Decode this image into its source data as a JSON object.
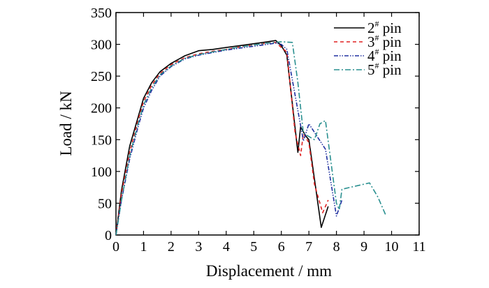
{
  "chart_data": {
    "type": "line",
    "xlabel": "Displacement / mm",
    "ylabel": "Load / kN",
    "xlim": [
      0,
      11
    ],
    "ylim": [
      0,
      350
    ],
    "xticks": [
      0,
      1,
      2,
      3,
      4,
      5,
      6,
      7,
      8,
      9,
      10,
      11
    ],
    "yticks": [
      0,
      50,
      100,
      150,
      200,
      250,
      300,
      350
    ],
    "grid": false,
    "legend_position": "top-right",
    "series": [
      {
        "name": "2# pin",
        "name_base": "2",
        "name_sup": "#",
        "name_rest": " pin",
        "color": "#000000",
        "dash": "solid",
        "x": [
          0,
          0.2,
          0.5,
          0.8,
          1.0,
          1.3,
          1.6,
          2.0,
          2.5,
          3.0,
          3.5,
          4.0,
          4.5,
          5.0,
          5.5,
          5.8,
          6.0,
          6.2,
          6.6,
          6.7,
          6.9,
          7.0,
          7.45,
          7.7
        ],
        "y": [
          0,
          70,
          140,
          185,
          215,
          240,
          257,
          270,
          282,
          290,
          292,
          295,
          298,
          301,
          304,
          306,
          298,
          283,
          130,
          170,
          155,
          150,
          12,
          45
        ]
      },
      {
        "name": "3# pin",
        "name_base": "3",
        "name_sup": "#",
        "name_rest": " pin",
        "color": "#e02020",
        "dash": "5,4",
        "x": [
          0,
          0.2,
          0.5,
          0.8,
          1.0,
          1.3,
          1.6,
          2.0,
          2.5,
          3.0,
          3.5,
          4.0,
          4.5,
          5.0,
          5.5,
          5.8,
          6.0,
          6.2,
          6.5,
          6.7,
          6.8,
          7.0,
          7.2,
          7.5,
          7.7
        ],
        "y": [
          0,
          65,
          130,
          180,
          210,
          236,
          254,
          268,
          279,
          285,
          289,
          292,
          296,
          299,
          302,
          303,
          295,
          288,
          160,
          125,
          160,
          145,
          80,
          35,
          55
        ]
      },
      {
        "name": "4# pin",
        "name_base": "4",
        "name_sup": "#",
        "name_rest": " pin",
        "color": "#2030a0",
        "dash": "6,2,1.5,2,1.5,2",
        "x": [
          0,
          0.2,
          0.5,
          0.8,
          1.0,
          1.3,
          1.6,
          2.0,
          2.5,
          3.0,
          3.5,
          4.0,
          4.5,
          5.0,
          5.5,
          5.8,
          6.0,
          6.2,
          6.8,
          7.0,
          7.3,
          7.6,
          8.0,
          8.2
        ],
        "y": [
          0,
          55,
          120,
          170,
          200,
          228,
          250,
          265,
          277,
          283,
          287,
          291,
          294,
          297,
          300,
          302,
          300,
          292,
          148,
          175,
          155,
          135,
          30,
          55
        ]
      },
      {
        "name": "5# pin",
        "name_base": "5",
        "name_sup": "#",
        "name_rest": " pin",
        "color": "#2a9090",
        "dash": "8,3,2,3",
        "x": [
          0,
          0.2,
          0.5,
          0.8,
          1.0,
          1.3,
          1.6,
          2.0,
          2.5,
          3.0,
          3.5,
          4.0,
          4.5,
          5.0,
          5.5,
          5.8,
          6.0,
          6.4,
          6.6,
          6.8,
          7.2,
          7.4,
          7.6,
          8.0,
          8.1,
          8.2,
          8.5,
          9.0,
          9.2,
          9.5,
          9.8
        ],
        "y": [
          0,
          55,
          125,
          175,
          205,
          232,
          252,
          266,
          278,
          284,
          288,
          292,
          296,
          299,
          302,
          303,
          304,
          303,
          240,
          160,
          150,
          175,
          180,
          50,
          40,
          72,
          75,
          80,
          82,
          60,
          30
        ]
      }
    ]
  }
}
